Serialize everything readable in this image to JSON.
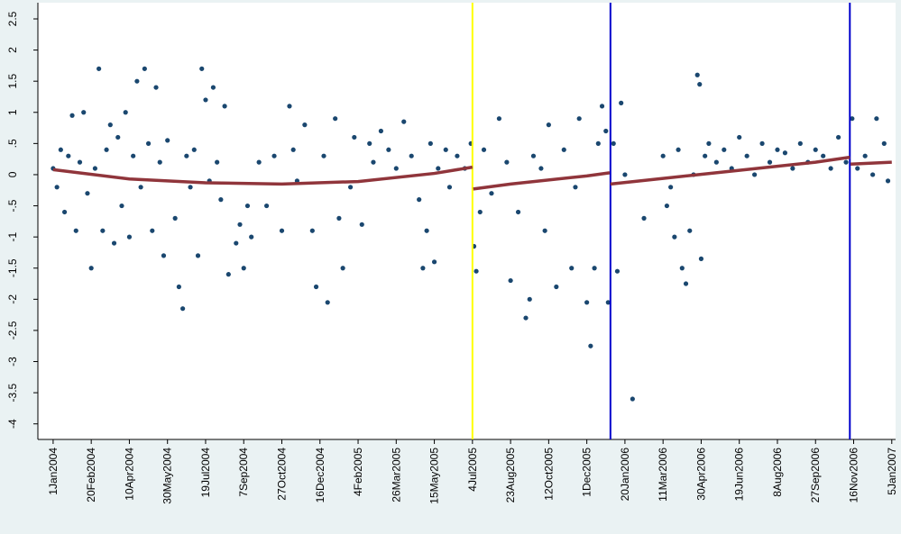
{
  "chart_data": {
    "type": "scatter",
    "xlim": [
      -20,
      1105
    ],
    "ylim": [
      -4.25,
      2.76
    ],
    "xticks": [
      {
        "value": 0,
        "label": "1Jan2004"
      },
      {
        "value": 50,
        "label": "20Feb2004"
      },
      {
        "value": 100,
        "label": "10Apr2004"
      },
      {
        "value": 150,
        "label": "30May2004"
      },
      {
        "value": 200,
        "label": "19Jul2004"
      },
      {
        "value": 250,
        "label": "7Sep2004"
      },
      {
        "value": 300,
        "label": "27Oct2004"
      },
      {
        "value": 350,
        "label": "16Dec2004"
      },
      {
        "value": 400,
        "label": "4Feb2005"
      },
      {
        "value": 450,
        "label": "26Mar2005"
      },
      {
        "value": 500,
        "label": "15May2005"
      },
      {
        "value": 550,
        "label": "4Jul2005"
      },
      {
        "value": 600,
        "label": "23Aug2005"
      },
      {
        "value": 650,
        "label": "12Oct2005"
      },
      {
        "value": 700,
        "label": "1Dec2005"
      },
      {
        "value": 750,
        "label": "20Jan2006"
      },
      {
        "value": 800,
        "label": "11Mar2006"
      },
      {
        "value": 850,
        "label": "30Apr2006"
      },
      {
        "value": 900,
        "label": "19Jun2006"
      },
      {
        "value": 950,
        "label": "8Aug2006"
      },
      {
        "value": 1000,
        "label": "27Sep2006"
      },
      {
        "value": 1050,
        "label": "16Nov2006"
      },
      {
        "value": 1100,
        "label": "5Jan2007"
      }
    ],
    "yticks": [
      2.5,
      2,
      1.5,
      1,
      {
        "value": 0.5,
        "label": ".5"
      },
      0,
      {
        "value": -0.5,
        "label": "-.5"
      },
      -1,
      -1.5,
      -2,
      -2.5,
      -3,
      -3.5,
      -4
    ],
    "series": [
      {
        "color": "#1a476f",
        "x": [
          0,
          5,
          10,
          15,
          20,
          25,
          30,
          35,
          40,
          45,
          50,
          55,
          60,
          65,
          70,
          75,
          80,
          85,
          90,
          95,
          100,
          105,
          110,
          115,
          120,
          125,
          130,
          135,
          140,
          145,
          150,
          160,
          165,
          170,
          175,
          180,
          185,
          190,
          195,
          200,
          205,
          210,
          215,
          220,
          225,
          230,
          240,
          245,
          250,
          255,
          260,
          270,
          280,
          290,
          300,
          310,
          315,
          320,
          330,
          340,
          345,
          355,
          360,
          370,
          375,
          380,
          390,
          395,
          405,
          415,
          420,
          430,
          440,
          450,
          460,
          470,
          480,
          485,
          490,
          495,
          500,
          505,
          515,
          520,
          530,
          540,
          548,
          552,
          555,
          560,
          565,
          575,
          585,
          595,
          600,
          610,
          620,
          625,
          630,
          640,
          645,
          650,
          660,
          670,
          680,
          685,
          690,
          700,
          705,
          710,
          715,
          720,
          725,
          728,
          735,
          740,
          745,
          750,
          760,
          775,
          800,
          805,
          810,
          815,
          820,
          825,
          830,
          835,
          840,
          845,
          848,
          850,
          855,
          860,
          870,
          880,
          890,
          900,
          910,
          920,
          930,
          940,
          950,
          960,
          970,
          980,
          990,
          1000,
          1010,
          1020,
          1030,
          1040,
          1048,
          1055,
          1065,
          1075,
          1080,
          1090,
          1095
        ],
        "values": [
          0.1,
          -0.2,
          0.4,
          -0.6,
          0.3,
          0.95,
          -0.9,
          0.2,
          1.0,
          -0.3,
          -1.5,
          0.1,
          1.7,
          -0.9,
          0.4,
          0.8,
          -1.1,
          0.6,
          -0.5,
          1.0,
          -1.0,
          0.3,
          1.5,
          -0.2,
          1.7,
          0.5,
          -0.9,
          1.4,
          0.2,
          -1.3,
          0.55,
          -0.7,
          -1.8,
          -2.15,
          0.3,
          -0.2,
          0.4,
          -1.3,
          1.7,
          1.2,
          -0.1,
          1.4,
          0.2,
          -0.4,
          1.1,
          -1.6,
          -1.1,
          -0.8,
          -1.5,
          -0.5,
          -1.0,
          0.2,
          -0.5,
          0.3,
          -0.9,
          1.1,
          0.4,
          -0.1,
          0.8,
          -0.9,
          -1.8,
          0.3,
          -2.05,
          0.9,
          -0.7,
          -1.5,
          -0.2,
          0.6,
          -0.8,
          0.5,
          0.2,
          0.7,
          0.4,
          0.1,
          0.85,
          0.3,
          -0.4,
          -1.5,
          -0.9,
          0.5,
          -1.4,
          0.1,
          0.4,
          -0.2,
          0.3,
          0.1,
          0.5,
          -1.15,
          -1.55,
          -0.6,
          0.4,
          -0.3,
          0.9,
          0.2,
          -1.7,
          -0.6,
          -2.3,
          -2.0,
          0.3,
          0.1,
          -0.9,
          0.8,
          -1.8,
          0.4,
          -1.5,
          -0.2,
          0.9,
          -2.05,
          -2.75,
          -1.5,
          0.5,
          1.1,
          0.7,
          -2.05,
          0.5,
          -1.55,
          1.15,
          0.0,
          -3.6,
          -0.7,
          0.3,
          -0.5,
          -0.2,
          -1.0,
          0.4,
          -1.5,
          -1.75,
          -0.9,
          0.0,
          1.6,
          1.45,
          -1.35,
          0.3,
          0.5,
          0.2,
          0.4,
          0.1,
          0.6,
          0.3,
          0.0,
          0.5,
          0.2,
          0.4,
          0.35,
          0.1,
          0.5,
          0.2,
          0.4,
          0.3,
          0.1,
          0.6,
          0.2,
          0.9,
          0.1,
          0.3,
          0.0,
          0.9,
          0.5,
          -0.1
        ]
      }
    ],
    "fit": {
      "color": "#90353b",
      "x": [
        0,
        100,
        200,
        300,
        400,
        500,
        550,
        null,
        551,
        600,
        700,
        730,
        null,
        731,
        800,
        900,
        1000,
        1045,
        null,
        1046,
        1100
      ],
      "values": [
        0.08,
        -0.07,
        -0.13,
        -0.15,
        -0.11,
        0.02,
        0.12,
        null,
        -0.23,
        -0.15,
        -0.02,
        0.03,
        null,
        -0.15,
        -0.06,
        0.07,
        0.2,
        0.28,
        null,
        0.17,
        0.2
      ]
    },
    "vlines": [
      {
        "x": 550,
        "color": "#ffff00"
      },
      {
        "x": 731,
        "color": "#0000cc"
      },
      {
        "x": 1045,
        "color": "#0000cc"
      }
    ]
  }
}
